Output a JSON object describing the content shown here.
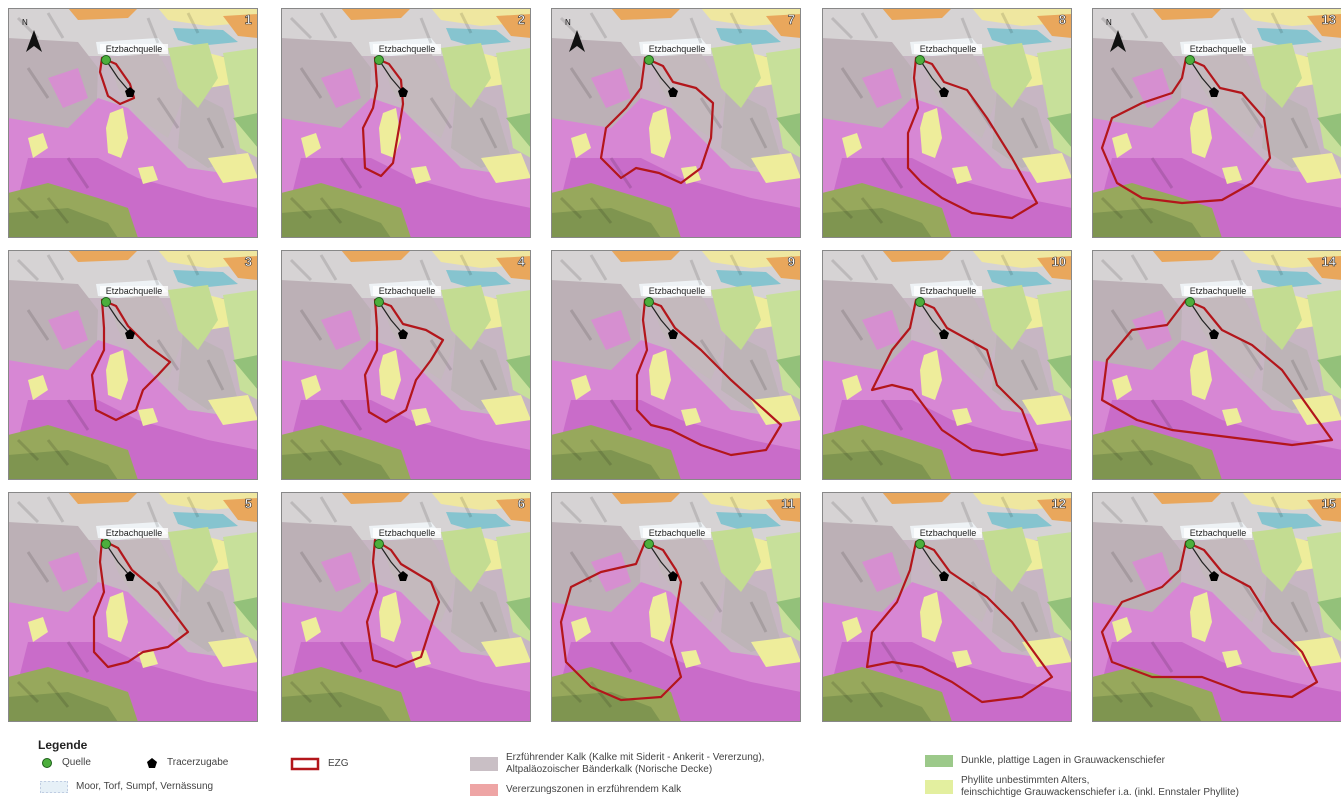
{
  "panels": [
    {
      "number": "1",
      "label": "Etzbachquelle"
    },
    {
      "number": "2",
      "label": "Etzbachquelle"
    },
    {
      "number": "7",
      "label": "Etzbachquelle"
    },
    {
      "number": "8",
      "label": "Etzbachquelle"
    },
    {
      "number": "13",
      "label": "Etzbachquelle"
    },
    {
      "number": "3",
      "label": "Etzbachquelle"
    },
    {
      "number": "4",
      "label": "Etzbachquelle"
    },
    {
      "number": "9",
      "label": "Etzbachquelle"
    },
    {
      "number": "10",
      "label": "Etzbachquelle"
    },
    {
      "number": "14",
      "label": "Etzbachquelle"
    },
    {
      "number": "5",
      "label": "Etzbachquelle"
    },
    {
      "number": "6",
      "label": "Etzbachquelle"
    },
    {
      "number": "11",
      "label": "Etzbachquelle"
    },
    {
      "number": "12",
      "label": "Etzbachquelle"
    },
    {
      "number": "15",
      "label": "Etzbachquelle"
    }
  ],
  "north_label": "N",
  "legend": {
    "title": "Legende",
    "items": [
      "Quelle",
      "Tracerzugabe",
      "EZG",
      "Moor, Torf, Sumpf, Vernässung",
      [
        "Erzführender Kalk (Kalke mit Siderit - Ankerit - Vererzung),",
        "Altpaläozoischer Bänderkalk (Norische Decke)"
      ],
      "Vererzungszonen in erzführendem Kalk",
      "Dunkle, plattige Lagen in Grauwackenschiefer",
      [
        "Phyllite unbestimmten Alters,",
        "feinschichtige Grauwackenschiefer i.a. (inkl. Ennstaler Phyllite)"
      ]
    ]
  }
}
